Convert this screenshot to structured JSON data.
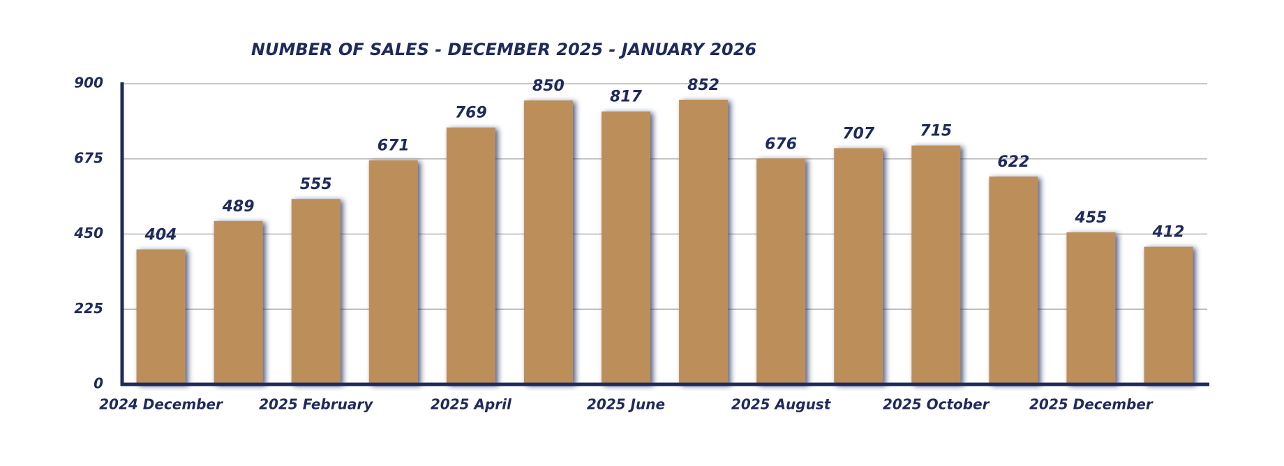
{
  "chart_data": {
    "type": "bar",
    "title": "NUMBER OF SALES - DECEMBER 2025 - JANUARY 2026",
    "categories": [
      "2024 December",
      null,
      "2025 February",
      null,
      "2025 April",
      null,
      "2025 June",
      null,
      "2025 August",
      null,
      "2025 October",
      null,
      "2025 December",
      null
    ],
    "values": [
      404,
      489,
      555,
      671,
      769,
      850,
      817,
      852,
      676,
      707,
      715,
      622,
      455,
      412
    ],
    "color": "#bc8f5a",
    "ylim": [
      0,
      900
    ],
    "yticks": [
      0,
      225,
      450,
      675,
      900
    ],
    "grid": true
  }
}
